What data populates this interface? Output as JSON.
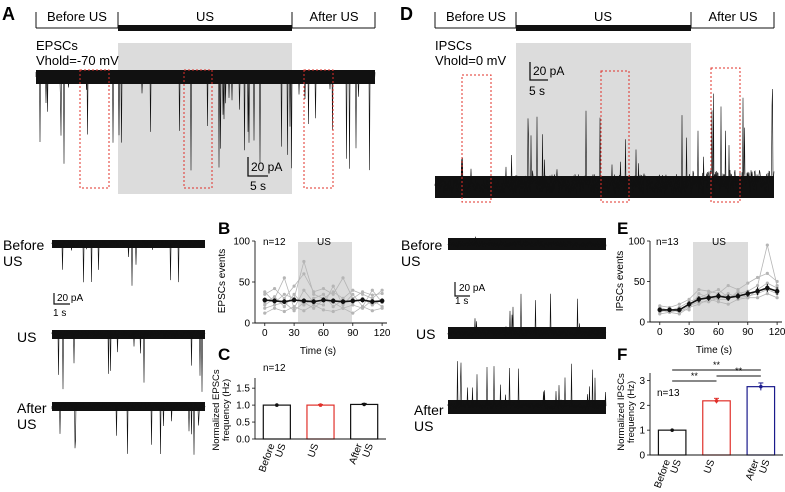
{
  "figure": {
    "panel_letters": {
      "A": "A",
      "B": "B",
      "C": "C",
      "D": "D",
      "E": "E",
      "F": "F"
    },
    "epoch_labels": {
      "before": "Before US",
      "us": "US",
      "after": "After US"
    },
    "panel_A": {
      "title": "EPSCs",
      "vhold": "Vhold=-70 mV",
      "scale_y": "20 pA",
      "scale_x": "5 s"
    },
    "panel_D": {
      "title": "IPSCs",
      "vhold": "Vhold=0 mV",
      "scale_y": "20 pA",
      "scale_x": "5 s"
    },
    "zoom_left": {
      "before": [
        "Before",
        "US"
      ],
      "us": "US",
      "after": [
        "After",
        "US"
      ],
      "scale_y": "20 pA",
      "scale_x": "1 s"
    },
    "zoom_right": {
      "before": [
        "Before",
        "US"
      ],
      "us": "US",
      "after": [
        "After",
        "US"
      ],
      "scale_y": "20 pA",
      "scale_x": "1 s"
    },
    "colors": {
      "trace": "#111111",
      "shade": "#dcdcdc",
      "highlight": "#e0302a",
      "after_bar": "#1a1a8c",
      "gray_lines": "#b5b5b5"
    }
  },
  "chart_data": [
    {
      "id": "B",
      "type": "line",
      "title": "",
      "annotation_n": "n=12",
      "shade_label": "US",
      "shade_range": [
        30,
        90
      ],
      "xlabel": "Time (s)",
      "ylabel": "EPSCs events",
      "xlim": [
        -10,
        125
      ],
      "ylim": [
        0,
        100
      ],
      "xticks": [
        0,
        30,
        60,
        90,
        120
      ],
      "yticks": [
        0,
        50,
        100
      ],
      "x": [
        0,
        10,
        20,
        30,
        40,
        50,
        60,
        70,
        80,
        90,
        100,
        110,
        120
      ],
      "series": [
        {
          "name": "mean",
          "values": [
            28,
            27,
            26,
            28,
            27,
            26,
            28,
            27,
            26,
            27,
            28,
            26,
            27
          ],
          "err": [
            3,
            3,
            3,
            3,
            3,
            3,
            3,
            3,
            3,
            3,
            3,
            3,
            3
          ]
        },
        {
          "name": "cell1",
          "values": [
            35,
            42,
            30,
            45,
            60,
            38,
            42,
            35,
            55,
            30,
            38,
            34,
            36
          ]
        },
        {
          "name": "cell2",
          "values": [
            22,
            30,
            55,
            18,
            40,
            25,
            22,
            45,
            22,
            35,
            20,
            40,
            25
          ]
        },
        {
          "name": "cell3",
          "values": [
            12,
            18,
            14,
            20,
            15,
            22,
            16,
            14,
            18,
            12,
            20,
            15,
            18
          ]
        },
        {
          "name": "cell4",
          "values": [
            38,
            25,
            35,
            30,
            75,
            35,
            30,
            38,
            30,
            40,
            35,
            30,
            40
          ]
        },
        {
          "name": "cell5",
          "values": [
            25,
            32,
            20,
            35,
            22,
            30,
            35,
            20,
            28,
            25,
            30,
            22,
            28
          ]
        },
        {
          "name": "cell6",
          "values": [
            18,
            22,
            25,
            15,
            25,
            18,
            28,
            25,
            18,
            22,
            18,
            28,
            20
          ]
        }
      ]
    },
    {
      "id": "C",
      "type": "bar",
      "annotation_n": "n=12",
      "categories": [
        "Before US",
        "US",
        "After US"
      ],
      "values": [
        1.0,
        1.0,
        1.02
      ],
      "err": [
        0,
        0.02,
        0.03
      ],
      "ylabel": "Normalized EPSCs frequency (Hz)",
      "ylim": [
        0,
        1.8
      ],
      "yticks": [
        0.0,
        0.5,
        1.0,
        1.5
      ],
      "ytick_labels": [
        "0.0",
        "0.5",
        "1.0",
        "1.5"
      ]
    },
    {
      "id": "E",
      "type": "line",
      "title": "",
      "annotation_n": "n=13",
      "shade_label": "US",
      "shade_range": [
        30,
        90
      ],
      "xlabel": "Time (s)",
      "ylabel": "IPSCs events",
      "xlim": [
        -10,
        125
      ],
      "ylim": [
        0,
        100
      ],
      "xticks": [
        0,
        30,
        60,
        90,
        120
      ],
      "yticks": [
        0,
        50,
        100
      ],
      "x": [
        0,
        10,
        20,
        30,
        40,
        50,
        60,
        70,
        80,
        90,
        100,
        110,
        120
      ],
      "series": [
        {
          "name": "mean",
          "values": [
            15,
            15,
            15,
            22,
            28,
            30,
            32,
            30,
            32,
            35,
            38,
            42,
            38
          ],
          "err": [
            3,
            3,
            3,
            4,
            4,
            4,
            4,
            4,
            4,
            4,
            5,
            5,
            5
          ]
        },
        {
          "name": "cell1",
          "values": [
            20,
            18,
            22,
            28,
            40,
            38,
            35,
            45,
            40,
            48,
            55,
            60,
            50
          ]
        },
        {
          "name": "cell2",
          "values": [
            10,
            12,
            10,
            18,
            22,
            28,
            25,
            22,
            28,
            30,
            30,
            35,
            30
          ]
        },
        {
          "name": "cell3",
          "values": [
            18,
            14,
            18,
            25,
            30,
            35,
            40,
            30,
            35,
            38,
            45,
            95,
            45
          ]
        },
        {
          "name": "cell4",
          "values": [
            12,
            16,
            12,
            20,
            25,
            25,
            30,
            35,
            30,
            32,
            35,
            40,
            35
          ]
        },
        {
          "name": "cell5",
          "values": [
            15,
            12,
            15,
            15,
            35,
            30,
            28,
            28,
            38,
            30,
            40,
            48,
            42
          ]
        }
      ]
    },
    {
      "id": "F",
      "type": "bar",
      "annotation_n": "n=13",
      "categories": [
        "Before US",
        "US",
        "After US"
      ],
      "values": [
        1.0,
        2.18,
        2.75
      ],
      "err": [
        0,
        0.1,
        0.15
      ],
      "ylabel": "Normalized IPSCs frequency (Hz)",
      "ylim": [
        0,
        3.3
      ],
      "yticks": [
        0,
        1,
        2,
        3
      ],
      "ytick_labels": [
        "0",
        "1",
        "2",
        "3"
      ],
      "significance": [
        {
          "from": 0,
          "to": 1,
          "label": "**"
        },
        {
          "from": 0,
          "to": 2,
          "label": "**"
        },
        {
          "from": 1,
          "to": 2,
          "label": "**"
        }
      ]
    }
  ]
}
